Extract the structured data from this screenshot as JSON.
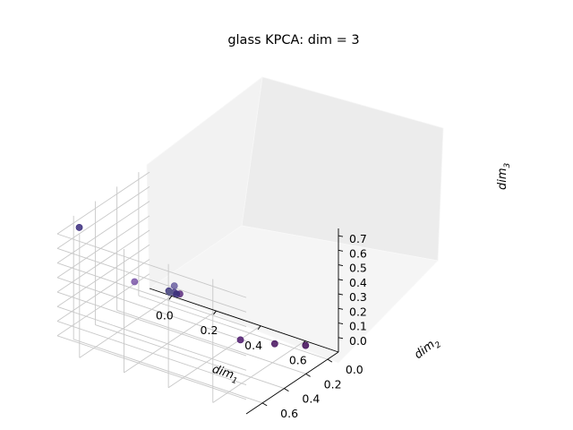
{
  "chart_data": {
    "type": "scatter3d",
    "title": "glass KPCA: dim = 3",
    "xlabel": "dim",
    "xlabel_sub": "1",
    "ylabel": "dim",
    "ylabel_sub": "2",
    "zlabel": "dim",
    "zlabel_sub": "3",
    "x_ticks": [
      "0.0",
      "0.2",
      "0.4",
      "0.6"
    ],
    "y_ticks": [
      "0.0",
      "0.2",
      "0.4",
      "0.6"
    ],
    "z_ticks": [
      "0.0",
      "0.1",
      "0.2",
      "0.3",
      "0.4",
      "0.5",
      "0.6",
      "0.7"
    ],
    "points": [
      {
        "x": -0.05,
        "y": 0.65,
        "z": 0.72,
        "color": "#3a2c7d"
      },
      {
        "x": 0.15,
        "y": 0.55,
        "z": 0.4,
        "color": "#7b56a8"
      },
      {
        "x": 0.08,
        "y": 0.04,
        "z": 0.08,
        "color": "#6a5fa0"
      },
      {
        "x": 0.06,
        "y": 0.05,
        "z": 0.04,
        "color": "#3e3580"
      },
      {
        "x": 0.1,
        "y": 0.03,
        "z": 0.03,
        "color": "#5a2c7d"
      },
      {
        "x": 0.07,
        "y": 0.02,
        "z": 0.02,
        "color": "#4a3d85"
      },
      {
        "x": 0.09,
        "y": 0.04,
        "z": 0.03,
        "color": "#3a2f7a"
      },
      {
        "x": 0.05,
        "y": 0.02,
        "z": 0.01,
        "color": "#5b5a8c"
      },
      {
        "x": 0.48,
        "y": 0.25,
        "z": 0.02,
        "color": "#4d1a6e"
      },
      {
        "x": 0.6,
        "y": 0.18,
        "z": 0.02,
        "color": "#46105e"
      },
      {
        "x": 0.7,
        "y": 0.1,
        "z": 0.02,
        "color": "#3f0a57"
      }
    ]
  }
}
